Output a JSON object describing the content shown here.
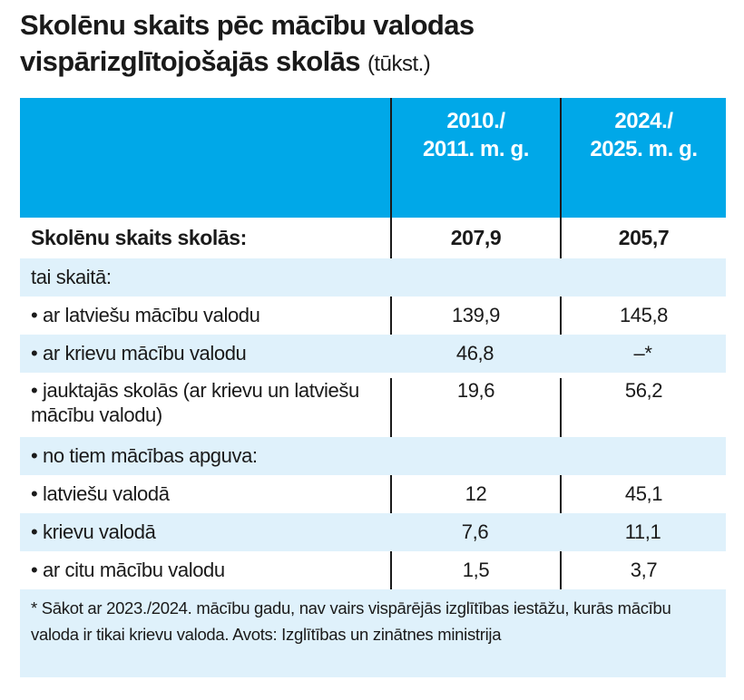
{
  "title": {
    "line1": "Skolēnu skaits pēc mācību valodas",
    "line2": "vispārizglītojošajās skolās",
    "unit": "(tūkst.)"
  },
  "colors": {
    "header": "#00a8e8",
    "stripe": "#dff1fb"
  },
  "chart_data": {
    "type": "table",
    "columns": [
      "",
      "2010./ 2011. m. g.",
      "2024./ 2025. m. g."
    ],
    "header": {
      "c1a": "2010./",
      "c1b": "2011. m. g.",
      "c2a": "2024./",
      "c2b": "2025. m. g."
    },
    "rows": [
      {
        "label": "Skolēnu skaits skolās:",
        "v1": "207,9",
        "v2": "205,7"
      },
      {
        "label": "tai skaitā:",
        "v1": "",
        "v2": ""
      },
      {
        "label": "• ar latviešu mācību valodu",
        "v1": "139,9",
        "v2": "145,8"
      },
      {
        "label": "• ar krievu mācību valodu",
        "v1": "46,8",
        "v2": "–*"
      },
      {
        "label": "• jauktajās skolās (ar krievu un latviešu mācību valodu)",
        "v1": "19,6",
        "v2": "56,2"
      },
      {
        "label": "• no tiem mācības apguva:",
        "v1": "",
        "v2": ""
      },
      {
        "label": "• latviešu valodā",
        "v1": "12",
        "v2": "45,1"
      },
      {
        "label": "• krievu valodā",
        "v1": "7,6",
        "v2": "11,1"
      },
      {
        "label": "• ar citu mācību valodu",
        "v1": "1,5",
        "v2": "3,7"
      }
    ],
    "footnote": "* Sākot ar 2023./2024. mācību gadu, nav vairs vispārējās izglītības iestāžu, kurās mācību valoda ir tikai krievu valoda. Avots: Izglītības un zinātnes ministrija"
  }
}
